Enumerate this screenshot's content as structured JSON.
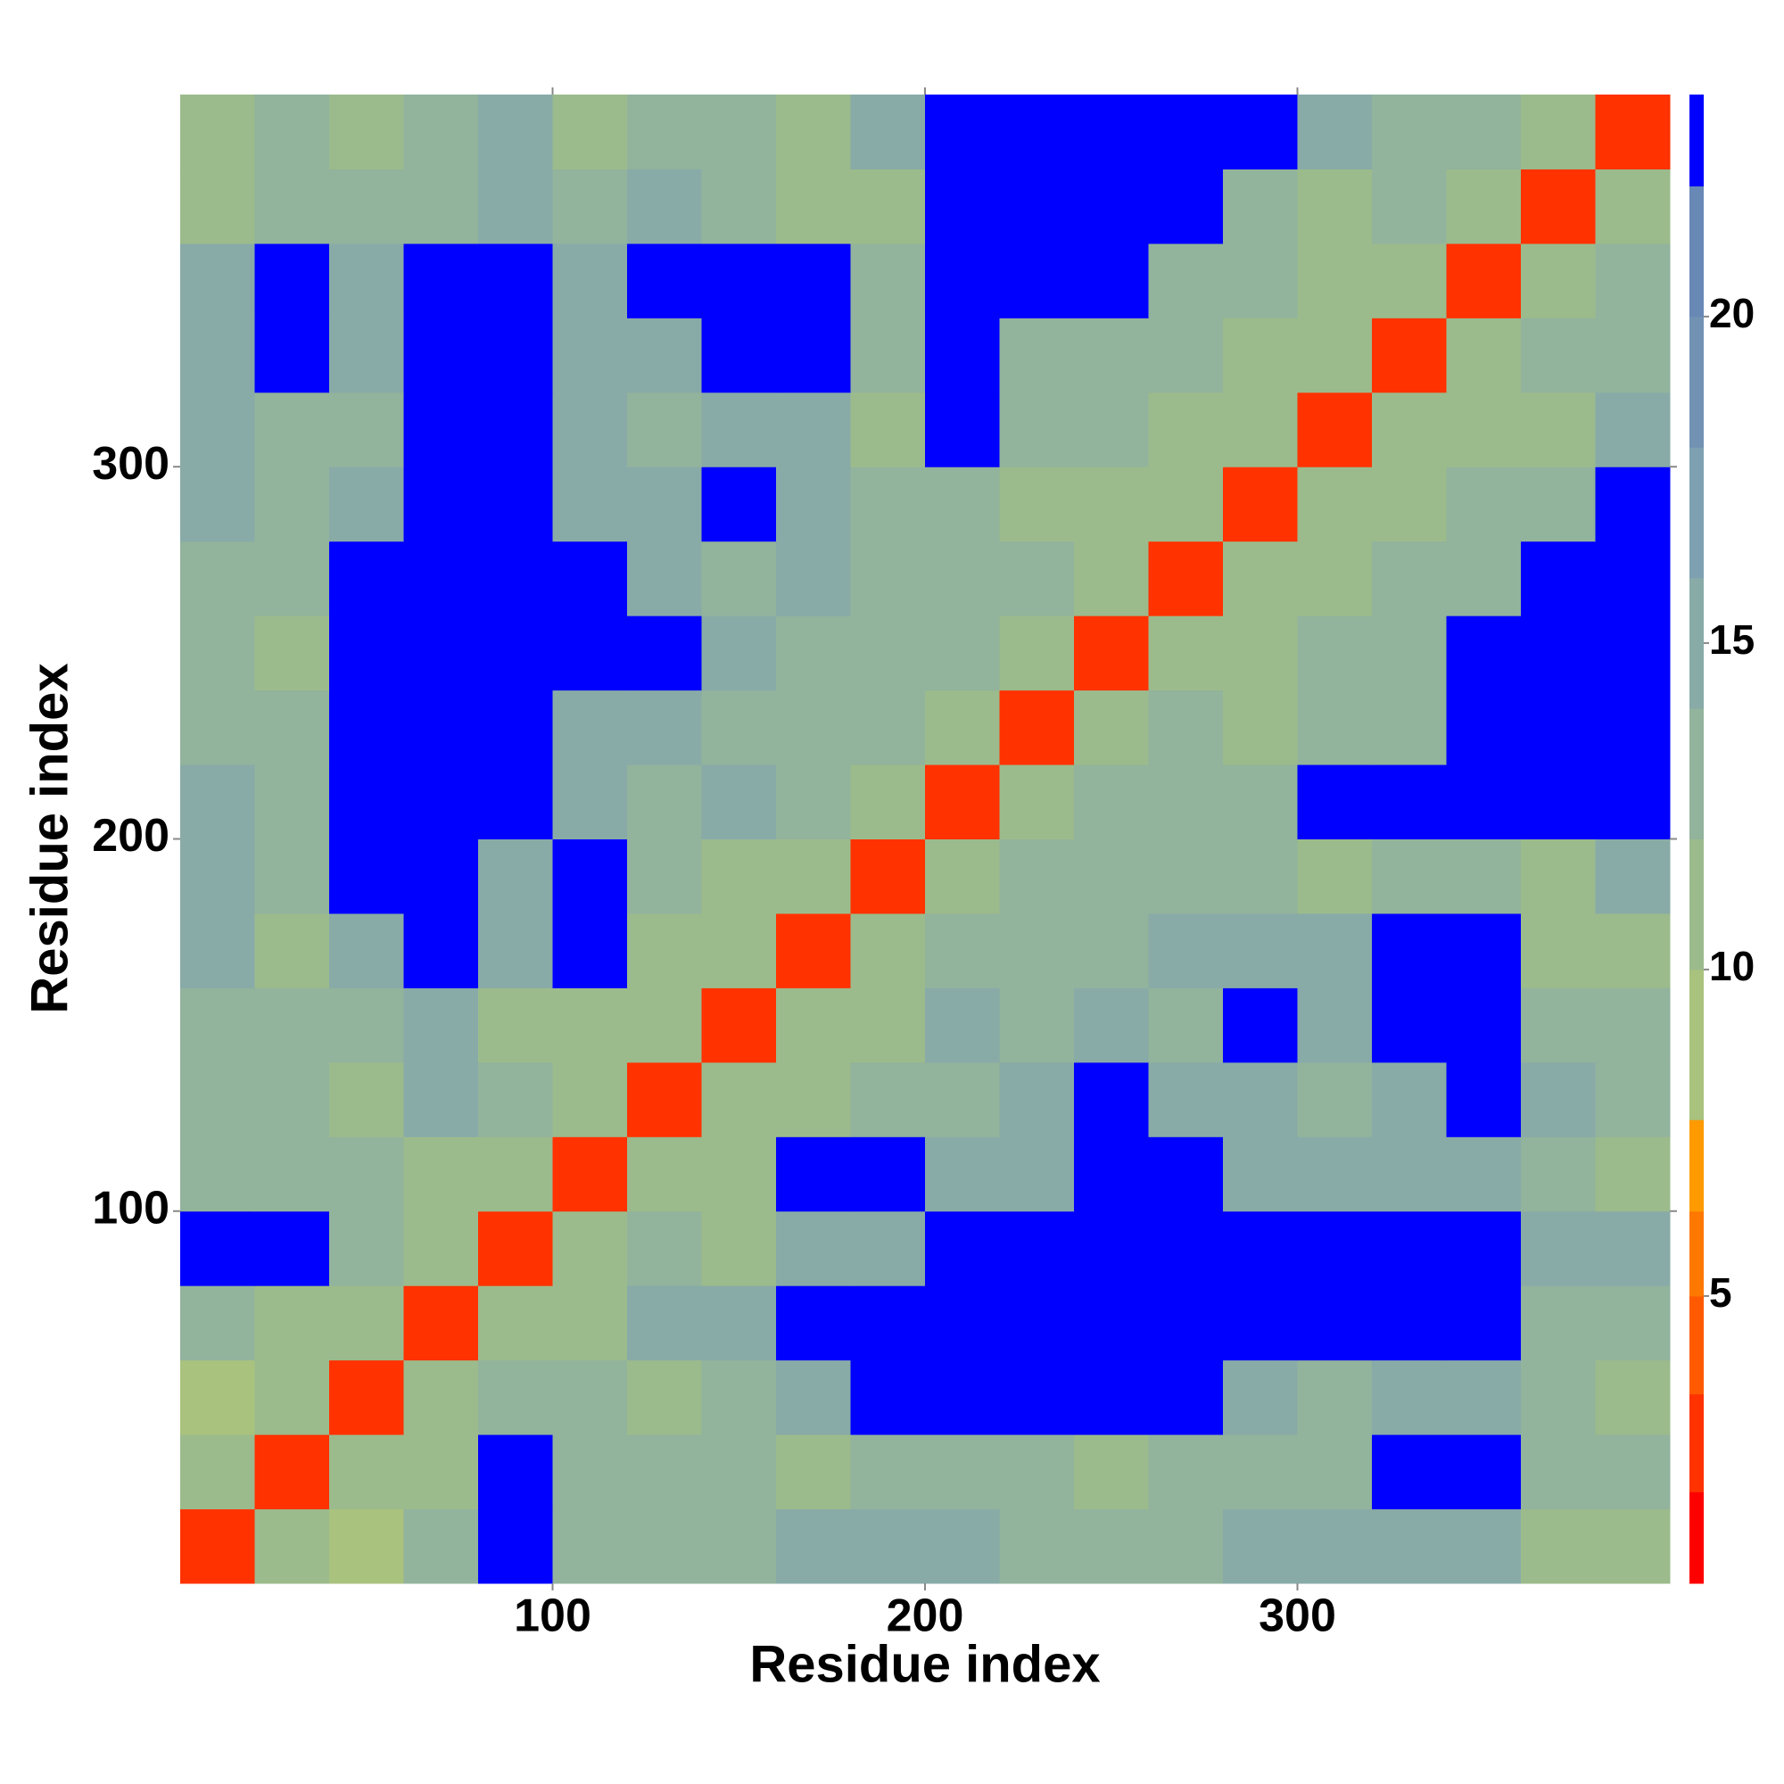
{
  "chart_data": {
    "type": "heatmap",
    "xlabel": "Residue index",
    "ylabel": "Residue index",
    "xbins": [
      0,
      20,
      40,
      60,
      80,
      100,
      120,
      140,
      160,
      180,
      200,
      220,
      240,
      260,
      280,
      300,
      320,
      340,
      360,
      380,
      400
    ],
    "ybins": [
      0,
      20,
      40,
      60,
      80,
      100,
      120,
      140,
      160,
      180,
      200,
      220,
      240,
      260,
      280,
      300,
      320,
      340,
      360,
      380,
      400
    ],
    "xlim": [
      0,
      400
    ],
    "ylim": [
      0,
      400
    ],
    "xticks": [
      100,
      200,
      300
    ],
    "yticks": [
      100,
      200,
      300
    ],
    "grid": false,
    "values": [
      [
        3,
        10,
        8,
        12,
        23,
        12,
        12,
        12,
        14,
        14,
        14,
        12,
        12,
        12,
        14,
        14,
        14,
        14,
        10,
        10
      ],
      [
        10,
        3,
        10,
        10,
        23,
        12,
        12,
        12,
        10,
        12,
        12,
        12,
        10,
        12,
        12,
        12,
        23,
        23,
        12,
        12
      ],
      [
        8,
        10,
        3,
        10,
        12,
        12,
        10,
        12,
        14,
        23,
        23,
        23,
        23,
        23,
        14,
        12,
        14,
        14,
        12,
        10
      ],
      [
        12,
        10,
        10,
        3,
        10,
        10,
        14,
        14,
        23,
        23,
        23,
        23,
        23,
        23,
        23,
        23,
        23,
        23,
        12,
        12
      ],
      [
        23,
        23,
        12,
        10,
        3,
        10,
        12,
        10,
        14,
        14,
        23,
        23,
        23,
        23,
        23,
        23,
        23,
        23,
        14,
        14
      ],
      [
        12,
        12,
        12,
        10,
        10,
        3,
        10,
        10,
        23,
        23,
        14,
        14,
        23,
        23,
        14,
        14,
        14,
        14,
        12,
        10
      ],
      [
        12,
        12,
        10,
        14,
        12,
        10,
        3,
        10,
        10,
        12,
        12,
        14,
        23,
        14,
        14,
        12,
        14,
        23,
        14,
        12
      ],
      [
        12,
        12,
        12,
        14,
        10,
        10,
        10,
        3,
        10,
        10,
        14,
        12,
        14,
        12,
        23,
        14,
        23,
        23,
        12,
        12
      ],
      [
        14,
        10,
        14,
        23,
        14,
        23,
        10,
        10,
        3,
        10,
        12,
        12,
        12,
        14,
        14,
        14,
        23,
        23,
        10,
        10
      ],
      [
        14,
        12,
        23,
        23,
        14,
        23,
        12,
        10,
        10,
        3,
        10,
        12,
        12,
        12,
        12,
        10,
        12,
        12,
        10,
        14
      ],
      [
        14,
        12,
        23,
        23,
        23,
        14,
        12,
        14,
        12,
        10,
        3,
        10,
        12,
        12,
        12,
        23,
        23,
        23,
        23,
        23
      ],
      [
        12,
        12,
        23,
        23,
        23,
        14,
        14,
        12,
        12,
        12,
        10,
        3,
        10,
        12,
        10,
        12,
        12,
        23,
        23,
        23
      ],
      [
        12,
        10,
        23,
        23,
        23,
        23,
        23,
        14,
        12,
        12,
        12,
        10,
        3,
        10,
        10,
        12,
        12,
        23,
        23,
        23
      ],
      [
        12,
        12,
        23,
        23,
        23,
        23,
        14,
        12,
        14,
        12,
        12,
        12,
        10,
        3,
        10,
        10,
        12,
        12,
        23,
        23
      ],
      [
        14,
        12,
        14,
        23,
        23,
        14,
        14,
        23,
        14,
        12,
        12,
        10,
        10,
        10,
        3,
        10,
        10,
        12,
        12,
        23
      ],
      [
        14,
        12,
        12,
        23,
        23,
        14,
        12,
        14,
        14,
        10,
        23,
        12,
        12,
        10,
        10,
        3,
        10,
        10,
        10,
        14
      ],
      [
        14,
        23,
        14,
        23,
        23,
        14,
        14,
        23,
        23,
        12,
        23,
        12,
        12,
        12,
        10,
        10,
        3,
        10,
        12,
        12
      ],
      [
        14,
        23,
        14,
        23,
        23,
        14,
        23,
        23,
        23,
        12,
        23,
        23,
        23,
        12,
        12,
        10,
        10,
        3,
        10,
        12
      ],
      [
        10,
        12,
        12,
        12,
        14,
        12,
        14,
        12,
        10,
        10,
        23,
        23,
        23,
        23,
        12,
        10,
        12,
        10,
        3,
        10
      ],
      [
        10,
        12,
        10,
        12,
        14,
        10,
        12,
        12,
        10,
        14,
        23,
        23,
        23,
        23,
        23,
        14,
        12,
        12,
        10,
        3
      ]
    ],
    "colorbar": {
      "zlim": [
        0.6,
        23.4
      ],
      "levels": [
        0.6,
        2,
        3.5,
        5,
        6.3,
        7.7,
        10,
        12,
        14,
        16,
        18,
        20,
        22,
        23.4
      ],
      "colors": [
        "#ff0000",
        "#ff3200",
        "#ff5a00",
        "#ff7800",
        "#ff9a00",
        "#a9c27e",
        "#9cbb8c",
        "#92b39c",
        "#88aba8",
        "#7ea1b2",
        "#7292b4",
        "#6888b6",
        "#0000ff"
      ],
      "ticks": [
        5,
        10,
        15,
        20
      ]
    }
  }
}
